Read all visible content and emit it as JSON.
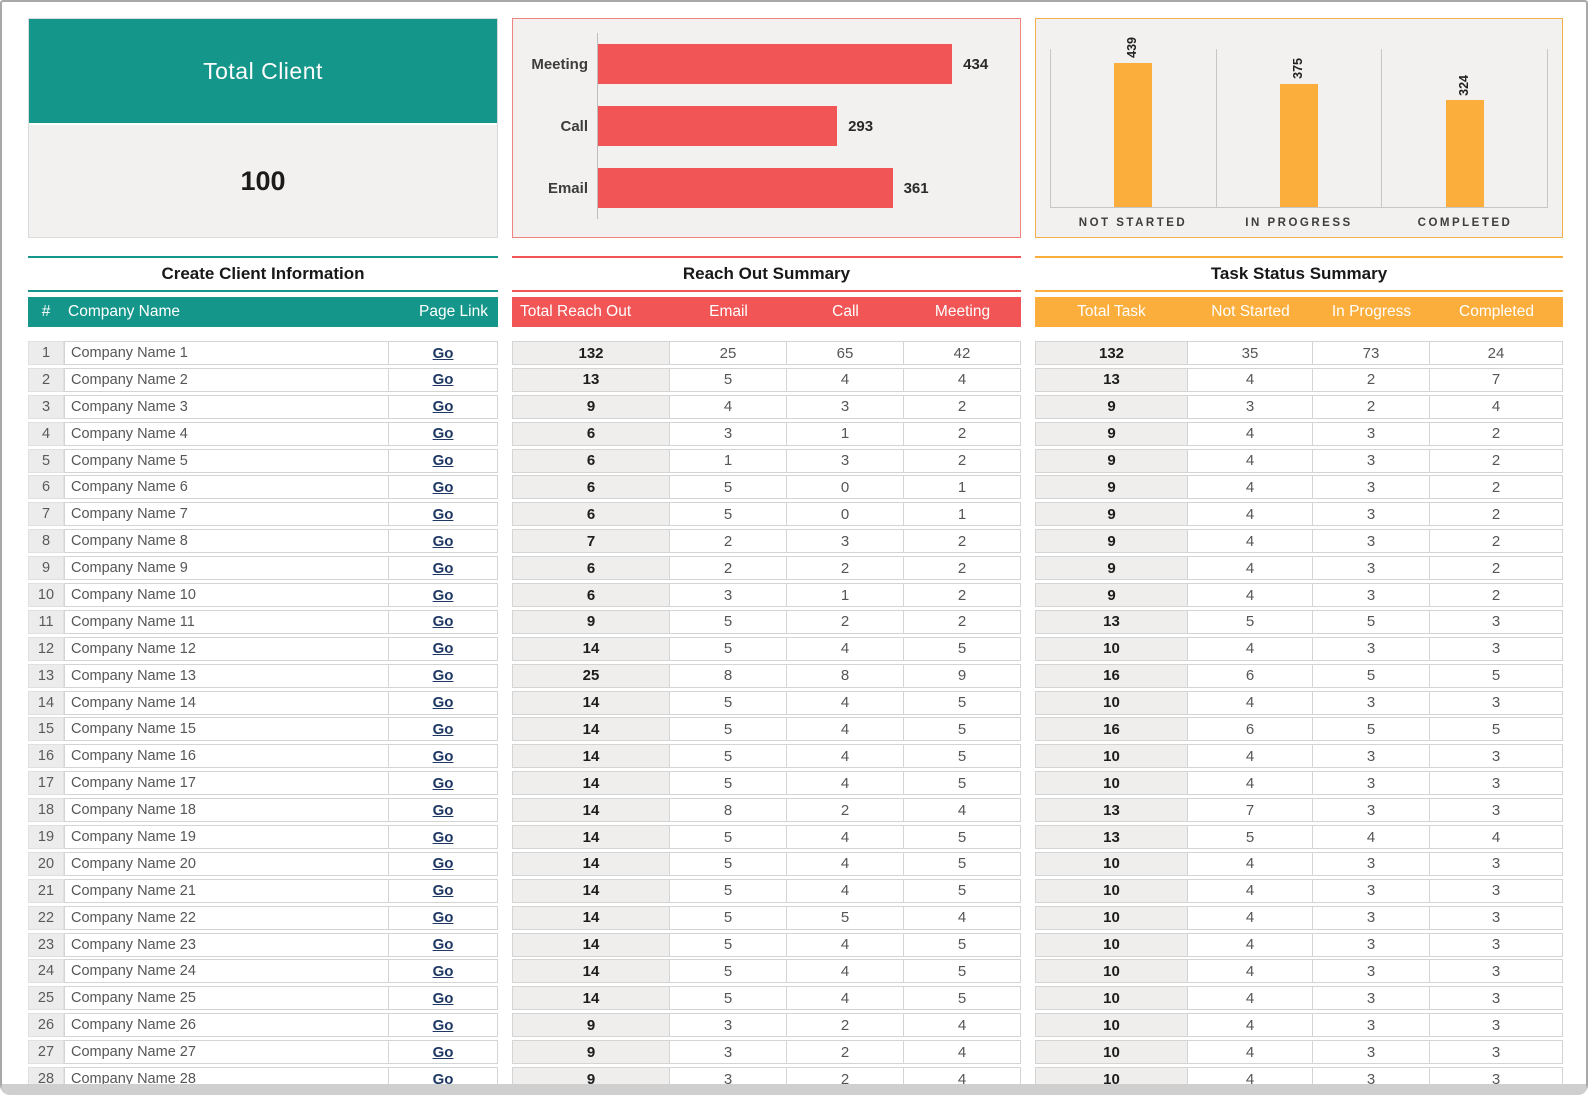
{
  "colors": {
    "teal": "#14968a",
    "red": "#f25555",
    "orange": "#fbae3c",
    "link": "#1f3864"
  },
  "card": {
    "title": "Total Client",
    "value": "100"
  },
  "charts": {
    "reach_out": {
      "type": "bar",
      "orientation": "horizontal",
      "categories": [
        "Meeting",
        "Call",
        "Email"
      ],
      "values": [
        434,
        293,
        361
      ],
      "scale_max": 500
    },
    "task_status": {
      "type": "bar",
      "orientation": "vertical",
      "categories": [
        "NOT STARTED",
        "IN PROGRESS",
        "COMPLETED"
      ],
      "values": [
        439,
        375,
        324
      ],
      "scale_max": 480
    }
  },
  "chart_data": [
    {
      "type": "bar",
      "orientation": "horizontal",
      "categories": [
        "Meeting",
        "Call",
        "Email"
      ],
      "values": [
        434,
        293,
        361
      ],
      "title": "",
      "xlabel": "",
      "ylabel": "",
      "data_labels": true,
      "legend": false
    },
    {
      "type": "bar",
      "orientation": "vertical",
      "categories": [
        "NOT STARTED",
        "IN PROGRESS",
        "COMPLETED"
      ],
      "values": [
        439,
        375,
        324
      ],
      "title": "",
      "xlabel": "",
      "ylabel": "",
      "data_labels": true,
      "legend": false
    }
  ],
  "sections": {
    "clients": {
      "title": "Create Client Information",
      "columns": [
        "#",
        "Company Name",
        "Page Link"
      ],
      "link_label": "Go",
      "rows": [
        {
          "n": 1,
          "name": "Company Name 1"
        },
        {
          "n": 2,
          "name": "Company Name 2"
        },
        {
          "n": 3,
          "name": "Company Name 3"
        },
        {
          "n": 4,
          "name": "Company Name 4"
        },
        {
          "n": 5,
          "name": "Company Name 5"
        },
        {
          "n": 6,
          "name": "Company Name 6"
        },
        {
          "n": 7,
          "name": "Company Name 7"
        },
        {
          "n": 8,
          "name": "Company Name 8"
        },
        {
          "n": 9,
          "name": "Company Name 9"
        },
        {
          "n": 10,
          "name": "Company Name 10"
        },
        {
          "n": 11,
          "name": "Company Name 11"
        },
        {
          "n": 12,
          "name": "Company Name 12"
        },
        {
          "n": 13,
          "name": "Company Name 13"
        },
        {
          "n": 14,
          "name": "Company Name 14"
        },
        {
          "n": 15,
          "name": "Company Name 15"
        },
        {
          "n": 16,
          "name": "Company Name 16"
        },
        {
          "n": 17,
          "name": "Company Name 17"
        },
        {
          "n": 18,
          "name": "Company Name 18"
        },
        {
          "n": 19,
          "name": "Company Name 19"
        },
        {
          "n": 20,
          "name": "Company Name 20"
        },
        {
          "n": 21,
          "name": "Company Name 21"
        },
        {
          "n": 22,
          "name": "Company Name 22"
        },
        {
          "n": 23,
          "name": "Company Name 23"
        },
        {
          "n": 24,
          "name": "Company Name 24"
        },
        {
          "n": 25,
          "name": "Company Name 25"
        },
        {
          "n": 26,
          "name": "Company Name 26"
        },
        {
          "n": 27,
          "name": "Company Name 27"
        },
        {
          "n": 28,
          "name": "Company Name 28"
        }
      ]
    },
    "reach_out": {
      "title": "Reach Out Summary",
      "columns": [
        "Total Reach Out",
        "Email",
        "Call",
        "Meeting"
      ],
      "rows": [
        [
          132,
          25,
          65,
          42
        ],
        [
          13,
          5,
          4,
          4
        ],
        [
          9,
          4,
          3,
          2
        ],
        [
          6,
          3,
          1,
          2
        ],
        [
          6,
          1,
          3,
          2
        ],
        [
          6,
          5,
          0,
          1
        ],
        [
          6,
          5,
          0,
          1
        ],
        [
          7,
          2,
          3,
          2
        ],
        [
          6,
          2,
          2,
          2
        ],
        [
          6,
          3,
          1,
          2
        ],
        [
          9,
          5,
          2,
          2
        ],
        [
          14,
          5,
          4,
          5
        ],
        [
          25,
          8,
          8,
          9
        ],
        [
          14,
          5,
          4,
          5
        ],
        [
          14,
          5,
          4,
          5
        ],
        [
          14,
          5,
          4,
          5
        ],
        [
          14,
          5,
          4,
          5
        ],
        [
          14,
          8,
          2,
          4
        ],
        [
          14,
          5,
          4,
          5
        ],
        [
          14,
          5,
          4,
          5
        ],
        [
          14,
          5,
          4,
          5
        ],
        [
          14,
          5,
          5,
          4
        ],
        [
          14,
          5,
          4,
          5
        ],
        [
          14,
          5,
          4,
          5
        ],
        [
          14,
          5,
          4,
          5
        ],
        [
          9,
          3,
          2,
          4
        ],
        [
          9,
          3,
          2,
          4
        ],
        [
          9,
          3,
          2,
          4
        ]
      ]
    },
    "tasks": {
      "title": "Task Status Summary",
      "columns": [
        "Total Task",
        "Not Started",
        "In Progress",
        "Completed"
      ],
      "rows": [
        [
          132,
          35,
          73,
          24
        ],
        [
          13,
          4,
          2,
          7
        ],
        [
          9,
          3,
          2,
          4
        ],
        [
          9,
          4,
          3,
          2
        ],
        [
          9,
          4,
          3,
          2
        ],
        [
          9,
          4,
          3,
          2
        ],
        [
          9,
          4,
          3,
          2
        ],
        [
          9,
          4,
          3,
          2
        ],
        [
          9,
          4,
          3,
          2
        ],
        [
          9,
          4,
          3,
          2
        ],
        [
          13,
          5,
          5,
          3
        ],
        [
          10,
          4,
          3,
          3
        ],
        [
          16,
          6,
          5,
          5
        ],
        [
          10,
          4,
          3,
          3
        ],
        [
          16,
          6,
          5,
          5
        ],
        [
          10,
          4,
          3,
          3
        ],
        [
          10,
          4,
          3,
          3
        ],
        [
          13,
          7,
          3,
          3
        ],
        [
          13,
          5,
          4,
          4
        ],
        [
          10,
          4,
          3,
          3
        ],
        [
          10,
          4,
          3,
          3
        ],
        [
          10,
          4,
          3,
          3
        ],
        [
          10,
          4,
          3,
          3
        ],
        [
          10,
          4,
          3,
          3
        ],
        [
          10,
          4,
          3,
          3
        ],
        [
          10,
          4,
          3,
          3
        ],
        [
          10,
          4,
          3,
          3
        ],
        [
          10,
          4,
          3,
          3
        ]
      ]
    }
  }
}
